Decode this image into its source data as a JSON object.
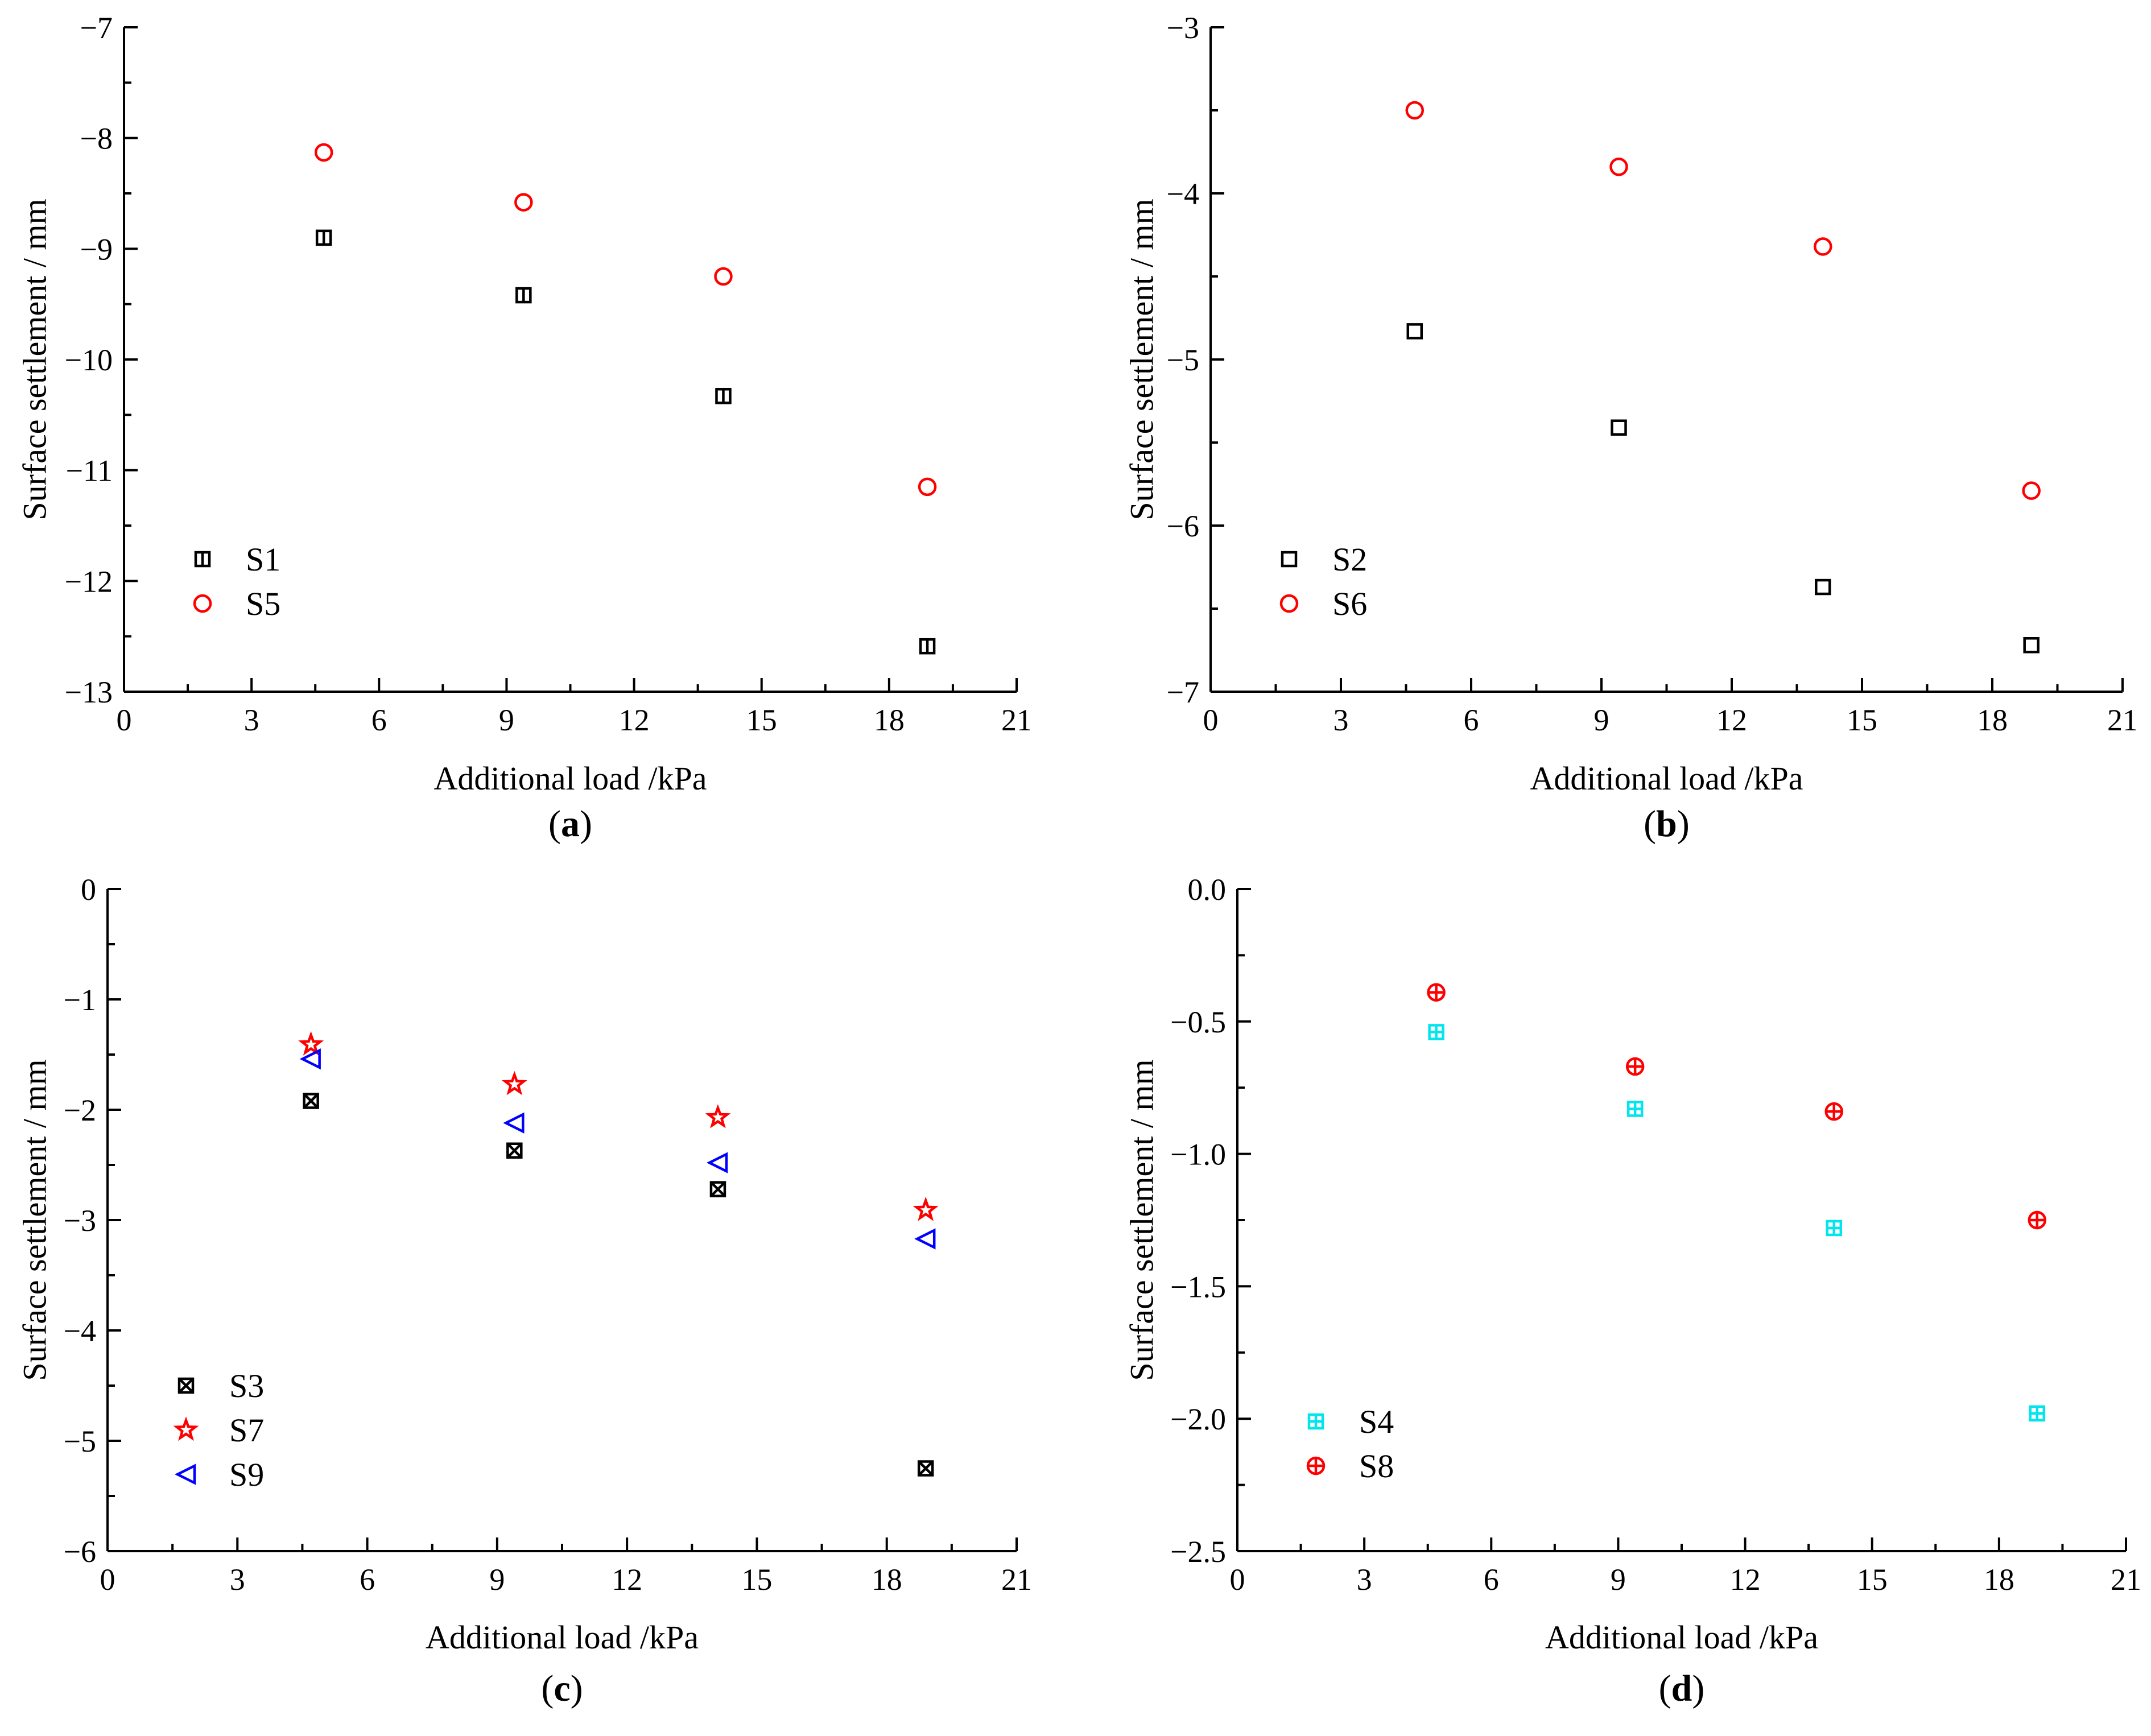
{
  "chart_data": [
    {
      "type": "scatter",
      "panel_label": "a",
      "xlabel": "Additional load /kPa",
      "ylabel": "Surface settlement / mm",
      "xlim": [
        0,
        21
      ],
      "ylim": [
        -13,
        -7
      ],
      "xticks": [
        0,
        3,
        6,
        9,
        12,
        15,
        18,
        21
      ],
      "yticks": [
        -13,
        -12,
        -11,
        -10,
        -9,
        -8,
        -7
      ],
      "xtick_labels": [
        "0",
        "3",
        "6",
        "9",
        "12",
        "15",
        "18",
        "21"
      ],
      "ytick_labels": [
        "−13",
        "−12",
        "−11",
        "−10",
        "−9",
        "−8",
        "−7"
      ],
      "legend_position": "bottom-left",
      "series": [
        {
          "name": "S1",
          "marker": "square-vline",
          "color": "#000000",
          "x": [
            4.7,
            9.4,
            14.1,
            18.9
          ],
          "y": [
            -8.9,
            -9.42,
            -10.33,
            -12.59
          ]
        },
        {
          "name": "S5",
          "marker": "circle",
          "color": "#ff0000",
          "x": [
            4.7,
            9.4,
            14.1,
            18.9
          ],
          "y": [
            -8.13,
            -8.58,
            -9.25,
            -11.15
          ]
        }
      ]
    },
    {
      "type": "scatter",
      "panel_label": "b",
      "xlabel": "Additional load /kPa",
      "ylabel": "Surface settlement / mm",
      "xlim": [
        0,
        21
      ],
      "ylim": [
        -7,
        -3
      ],
      "xticks": [
        0,
        3,
        6,
        9,
        12,
        15,
        18,
        21
      ],
      "yticks": [
        -7,
        -6,
        -5,
        -4,
        -3
      ],
      "xtick_labels": [
        "0",
        "3",
        "6",
        "9",
        "12",
        "15",
        "18",
        "21"
      ],
      "ytick_labels": [
        "−7",
        "−6",
        "−5",
        "−4",
        "−3"
      ],
      "legend_position": "bottom-left",
      "series": [
        {
          "name": "S2",
          "marker": "square",
          "color": "#000000",
          "x": [
            4.7,
            9.4,
            14.1,
            18.9
          ],
          "y": [
            -4.83,
            -5.41,
            -6.37,
            -6.72
          ]
        },
        {
          "name": "S6",
          "marker": "circle",
          "color": "#ff0000",
          "x": [
            4.7,
            9.4,
            14.1,
            18.9
          ],
          "y": [
            -3.5,
            -3.84,
            -4.32,
            -5.79
          ]
        }
      ]
    },
    {
      "type": "scatter",
      "panel_label": "c",
      "xlabel": "Additional load /kPa",
      "ylabel": "Surface settlement / mm",
      "xlim": [
        0,
        21
      ],
      "ylim": [
        -6,
        0
      ],
      "xticks": [
        0,
        3,
        6,
        9,
        12,
        15,
        18,
        21
      ],
      "yticks": [
        -6,
        -5,
        -4,
        -3,
        -2,
        -1,
        0
      ],
      "xtick_labels": [
        "0",
        "3",
        "6",
        "9",
        "12",
        "15",
        "18",
        "21"
      ],
      "ytick_labels": [
        "−6",
        "−5",
        "−4",
        "−3",
        "−2",
        "−1",
        "0"
      ],
      "legend_position": "bottom-left",
      "series": [
        {
          "name": "S3",
          "marker": "square-x",
          "color": "#000000",
          "x": [
            4.7,
            9.4,
            14.1,
            18.9
          ],
          "y": [
            -1.92,
            -2.37,
            -2.72,
            -5.25
          ]
        },
        {
          "name": "S7",
          "marker": "star",
          "color": "#ff0000",
          "x": [
            4.7,
            9.4,
            14.1,
            18.9
          ],
          "y": [
            -1.41,
            -1.77,
            -2.07,
            -2.91
          ]
        },
        {
          "name": "S9",
          "marker": "triangle-left",
          "color": "#0000ff",
          "x": [
            4.7,
            9.4,
            14.1,
            18.9
          ],
          "y": [
            -1.54,
            -2.12,
            -2.48,
            -3.17
          ]
        }
      ]
    },
    {
      "type": "scatter",
      "panel_label": "d",
      "xlabel": "Additional load /kPa",
      "ylabel": "Surface settlement / mm",
      "xlim": [
        0,
        21
      ],
      "ylim": [
        -2.5,
        0
      ],
      "xticks": [
        0,
        3,
        6,
        9,
        12,
        15,
        18,
        21
      ],
      "yticks": [
        -2.5,
        -2.0,
        -1.5,
        -1.0,
        -0.5,
        0.0
      ],
      "xtick_labels": [
        "0",
        "3",
        "6",
        "9",
        "12",
        "15",
        "18",
        "21"
      ],
      "ytick_labels": [
        "−2.5",
        "−2.0",
        "−1.5",
        "−1.0",
        "−0.5",
        "0.0"
      ],
      "legend_position": "bottom-left",
      "series": [
        {
          "name": "S4",
          "marker": "square-plus",
          "color": "#00e5ee",
          "x": [
            4.7,
            9.4,
            14.1,
            18.9
          ],
          "y": [
            -0.54,
            -0.83,
            -1.28,
            -1.98
          ]
        },
        {
          "name": "S8",
          "marker": "circle-plus",
          "color": "#ff0000",
          "x": [
            4.7,
            9.4,
            14.1,
            18.9
          ],
          "y": [
            -0.39,
            -0.67,
            -0.84,
            -1.25
          ]
        }
      ]
    }
  ]
}
